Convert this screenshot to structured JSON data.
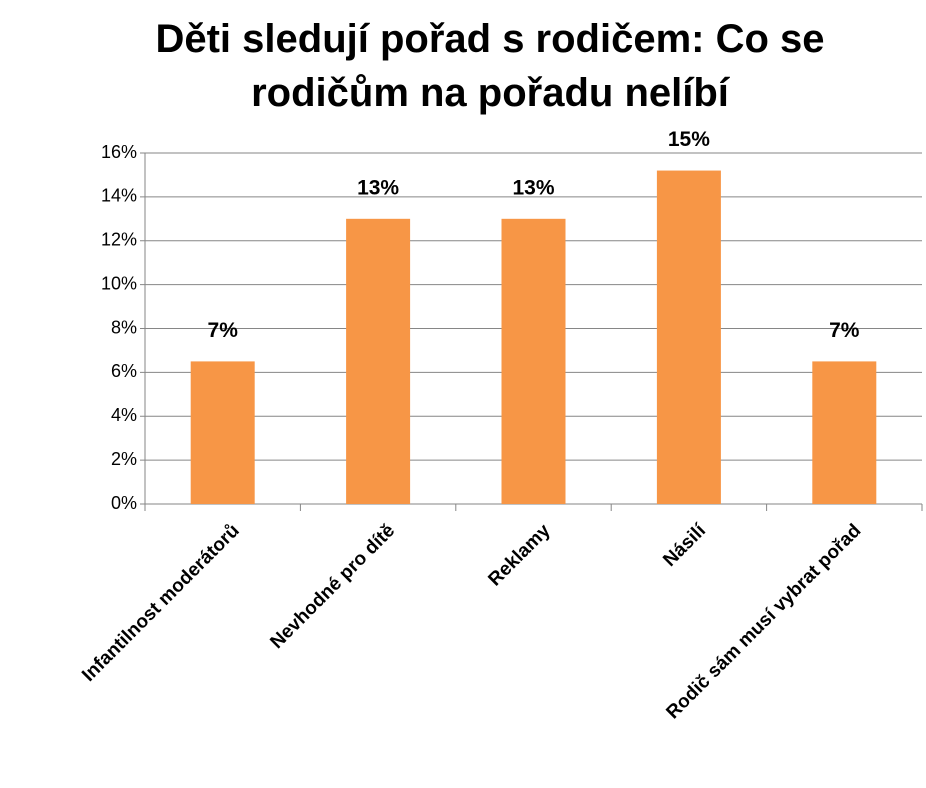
{
  "chart_data": {
    "type": "bar",
    "title": "Děti sledují pořad s rodičem: Co se rodičům na pořadu nelíbí",
    "categories": [
      "Infantilnost moderátorů",
      "Nevhodné pro dítě",
      "Reklamy",
      "Násilí",
      "Rodič sám musí vybrat pořad"
    ],
    "values": [
      6.5,
      13,
      13,
      15.2,
      6.5
    ],
    "value_labels": [
      "7%",
      "13%",
      "13%",
      "15%",
      "7%"
    ],
    "color": "#f79646",
    "ylim": [
      0,
      16
    ],
    "yticks": [
      {
        "value": 0,
        "label": "0%"
      },
      {
        "value": 2,
        "label": "2%"
      },
      {
        "value": 4,
        "label": "4%"
      },
      {
        "value": 6,
        "label": "6%"
      },
      {
        "value": 8,
        "label": "8%"
      },
      {
        "value": 10,
        "label": "10%"
      },
      {
        "value": 12,
        "label": "12%"
      },
      {
        "value": 14,
        "label": "14%"
      },
      {
        "value": 16,
        "label": "16%"
      }
    ],
    "grid": true
  }
}
